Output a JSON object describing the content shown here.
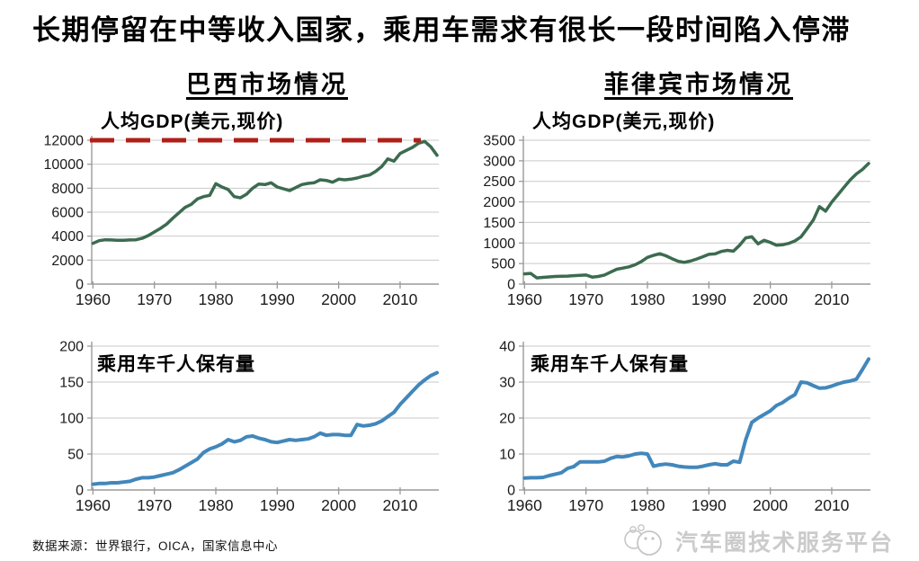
{
  "page": {
    "title": "长期停留在中等收入国家，乘用车需求有很长一段时间陷入停滞"
  },
  "columns": [
    {
      "title": "巴西市场情况"
    },
    {
      "title": "菲律宾市场情况"
    }
  ],
  "footer": {
    "source": "数据来源：世界银行，OICA，国家信息中心",
    "watermark": "汽车圈技术服务平台"
  },
  "style": {
    "grid_color": "#c9c9c9",
    "axis_color": "#9a9a9a",
    "green_line": "#3c6b50",
    "blue_line": "#4287bb",
    "red_dash": "#b02018"
  },
  "chart_data": [
    {
      "type": "line",
      "country": "巴西",
      "title": "人均GDP(美元,现价)",
      "x_start": 1960,
      "x_end": 2016,
      "xticks": [
        1960,
        1970,
        1980,
        1990,
        2000,
        2010
      ],
      "ylim": [
        0,
        12000
      ],
      "yticks": [
        0,
        2000,
        4000,
        6000,
        8000,
        10000,
        12000
      ],
      "color": "#3c6b50",
      "line_width": 3.5,
      "threshold": {
        "value": 12000,
        "color": "#b02018",
        "style": "dashed"
      },
      "values": [
        3400,
        3620,
        3700,
        3680,
        3650,
        3650,
        3680,
        3700,
        3820,
        4050,
        4350,
        4650,
        5000,
        5500,
        5950,
        6400,
        6650,
        7100,
        7300,
        7400,
        8380,
        8100,
        7900,
        7300,
        7200,
        7500,
        8000,
        8350,
        8300,
        8450,
        8100,
        7950,
        7800,
        8050,
        8300,
        8400,
        8450,
        8700,
        8650,
        8500,
        8750,
        8700,
        8750,
        8850,
        9000,
        9100,
        9400,
        9800,
        10450,
        10250,
        10900,
        11150,
        11400,
        11750,
        11900,
        11450,
        10750
      ]
    },
    {
      "type": "line",
      "country": "菲律宾",
      "title": "人均GDP(美元,现价)",
      "x_start": 1960,
      "x_end": 2016,
      "xticks": [
        1960,
        1970,
        1980,
        1990,
        2000,
        2010
      ],
      "ylim": [
        0,
        3500
      ],
      "yticks": [
        0,
        500,
        1000,
        1500,
        2000,
        2500,
        3000,
        3500
      ],
      "color": "#3c6b50",
      "line_width": 3.5,
      "values": [
        250,
        260,
        150,
        165,
        175,
        185,
        190,
        195,
        205,
        215,
        220,
        170,
        185,
        220,
        290,
        360,
        390,
        420,
        470,
        550,
        650,
        700,
        740,
        690,
        620,
        555,
        530,
        560,
        610,
        665,
        725,
        735,
        795,
        820,
        800,
        945,
        1125,
        1150,
        980,
        1065,
        1015,
        945,
        955,
        990,
        1050,
        1150,
        1350,
        1560,
        1885,
        1775,
        1995,
        2175,
        2355,
        2535,
        2680,
        2790,
        2935
      ]
    },
    {
      "type": "line",
      "country": "巴西",
      "title": "乘用车千人保有量",
      "x_start": 1960,
      "x_end": 2016,
      "xticks": [
        1960,
        1970,
        1980,
        1990,
        2000,
        2010
      ],
      "ylim": [
        0,
        200
      ],
      "yticks": [
        0,
        50,
        100,
        150,
        200
      ],
      "color": "#4287bb",
      "line_width": 4,
      "values": [
        8,
        9,
        9,
        10,
        10,
        11,
        12,
        15,
        17,
        17,
        18,
        20,
        22,
        24,
        28,
        33,
        38,
        43,
        52,
        57,
        60,
        64,
        70,
        67,
        69,
        74,
        75,
        72,
        70,
        67,
        66,
        68,
        70,
        69,
        70,
        71,
        74,
        79,
        76,
        77,
        77,
        76,
        76,
        91,
        89,
        90,
        92,
        96,
        102,
        108,
        119,
        128,
        137,
        146,
        153,
        159,
        163
      ]
    },
    {
      "type": "line",
      "country": "菲律宾",
      "title": "乘用车千人保有量",
      "x_start": 1960,
      "x_end": 2016,
      "xticks": [
        1960,
        1970,
        1980,
        1990,
        2000,
        2010
      ],
      "ylim": [
        0,
        40
      ],
      "yticks": [
        0,
        10,
        20,
        30,
        40
      ],
      "color": "#4287bb",
      "line_width": 4,
      "values": [
        3.3,
        3.4,
        3.4,
        3.5,
        4,
        4.4,
        4.8,
        6,
        6.5,
        7.8,
        7.8,
        7.8,
        7.8,
        8,
        8.8,
        9.3,
        9.2,
        9.5,
        10,
        10.2,
        10,
        6.6,
        7,
        7.2,
        7,
        6.6,
        6.4,
        6.3,
        6.3,
        6.6,
        7,
        7.3,
        7,
        7,
        8,
        7.7,
        14,
        18.8,
        20,
        21,
        22,
        23.5,
        24.3,
        25.5,
        26.5,
        30,
        29.8,
        29,
        28.3,
        28.4,
        28.9,
        29.5,
        30,
        30.3,
        30.8,
        33.5,
        36.4
      ]
    }
  ]
}
